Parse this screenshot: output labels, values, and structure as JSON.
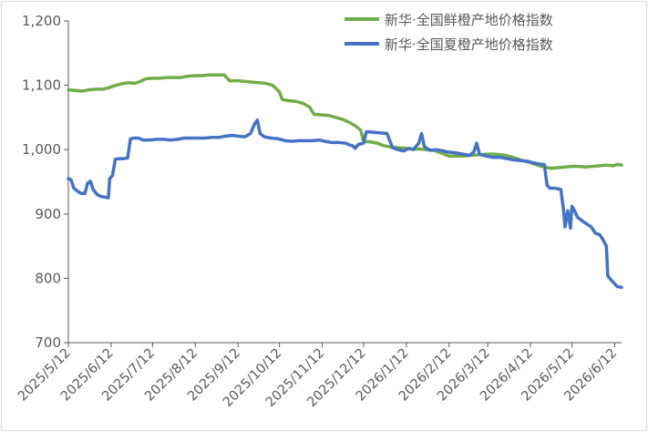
{
  "chart_data": {
    "type": "line",
    "title": "",
    "xlabel": "",
    "ylabel": "",
    "ylim": [
      700,
      1200
    ],
    "yticks": [
      700,
      800,
      900,
      1000,
      1100,
      1200
    ],
    "ytick_labels": [
      "700",
      "800",
      "900",
      "1,000",
      "1,100",
      "1,200"
    ],
    "xlim": [
      "2025-05-12",
      "2026-06-17"
    ],
    "xticks": [
      "2025-05-12",
      "2025-06-12",
      "2025-07-12",
      "2025-08-12",
      "2025-09-12",
      "2025-10-12",
      "2025-11-12",
      "2025-12-12",
      "2026-01-12",
      "2026-02-12",
      "2026-03-12",
      "2026-04-12",
      "2026-05-12",
      "2026-06-12"
    ],
    "xtick_labels": [
      "2025/5/12",
      "2025/6/12",
      "2025/7/12",
      "2025/8/12",
      "2025/9/12",
      "2025/10/12",
      "2025/11/12",
      "2025/12/12",
      "2026/1/12",
      "2026/2/12",
      "2026/3/12",
      "2026/4/12",
      "2026/5/12",
      "2026/6/12"
    ],
    "grid": false,
    "legend": "top-right",
    "series": [
      {
        "name": "新华·全国鲜橙产地价格指数",
        "color": "#70AD47",
        "points": [
          [
            "2025-05-12",
            1093
          ],
          [
            "2025-05-17",
            1092
          ],
          [
            "2025-05-22",
            1091
          ],
          [
            "2025-05-27",
            1093
          ],
          [
            "2025-06-01",
            1094
          ],
          [
            "2025-06-06",
            1094
          ],
          [
            "2025-06-10",
            1096
          ],
          [
            "2025-06-14",
            1099
          ],
          [
            "2025-06-19",
            1102
          ],
          [
            "2025-06-24",
            1104
          ],
          [
            "2025-06-29",
            1103
          ],
          [
            "2025-07-02",
            1105
          ],
          [
            "2025-07-07",
            1110
          ],
          [
            "2025-07-12",
            1111
          ],
          [
            "2025-07-17",
            1111
          ],
          [
            "2025-07-22",
            1112
          ],
          [
            "2025-07-27",
            1112
          ],
          [
            "2025-08-01",
            1112
          ],
          [
            "2025-08-06",
            1114
          ],
          [
            "2025-08-12",
            1115
          ],
          [
            "2025-08-17",
            1115
          ],
          [
            "2025-08-22",
            1116
          ],
          [
            "2025-08-27",
            1116
          ],
          [
            "2025-09-02",
            1116
          ],
          [
            "2025-09-06",
            1107
          ],
          [
            "2025-09-12",
            1107
          ],
          [
            "2025-09-17",
            1106
          ],
          [
            "2025-09-22",
            1105
          ],
          [
            "2025-09-27",
            1104
          ],
          [
            "2025-10-02",
            1103
          ],
          [
            "2025-10-07",
            1100
          ],
          [
            "2025-10-12",
            1090
          ],
          [
            "2025-10-14",
            1078
          ],
          [
            "2025-10-19",
            1076
          ],
          [
            "2025-10-24",
            1075
          ],
          [
            "2025-10-29",
            1072
          ],
          [
            "2025-11-03",
            1066
          ],
          [
            "2025-11-06",
            1055
          ],
          [
            "2025-11-12",
            1054
          ],
          [
            "2025-11-17",
            1053
          ],
          [
            "2025-11-22",
            1050
          ],
          [
            "2025-11-27",
            1047
          ],
          [
            "2025-12-02",
            1042
          ],
          [
            "2025-12-06",
            1037
          ],
          [
            "2025-12-10",
            1030
          ],
          [
            "2025-12-12",
            1013
          ],
          [
            "2025-12-17",
            1012
          ],
          [
            "2025-12-22",
            1010
          ],
          [
            "2025-12-27",
            1006
          ],
          [
            "2026-01-01",
            1004
          ],
          [
            "2026-01-06",
            1003
          ],
          [
            "2026-01-12",
            1002
          ],
          [
            "2026-01-17",
            1001
          ],
          [
            "2026-01-22",
            1001
          ],
          [
            "2026-01-27",
            1000
          ],
          [
            "2026-02-01",
            999
          ],
          [
            "2026-02-06",
            995
          ],
          [
            "2026-02-12",
            990
          ],
          [
            "2026-02-17",
            990
          ],
          [
            "2026-02-22",
            990
          ],
          [
            "2026-02-27",
            991
          ],
          [
            "2026-03-04",
            992
          ],
          [
            "2026-03-12",
            993
          ],
          [
            "2026-03-17",
            993
          ],
          [
            "2026-03-22",
            992
          ],
          [
            "2026-03-27",
            990
          ],
          [
            "2026-04-01",
            987
          ],
          [
            "2026-04-06",
            983
          ],
          [
            "2026-04-12",
            980
          ],
          [
            "2026-04-17",
            976
          ],
          [
            "2026-04-22",
            973
          ],
          [
            "2026-04-27",
            971
          ],
          [
            "2026-05-02",
            972
          ],
          [
            "2026-05-07",
            973
          ],
          [
            "2026-05-12",
            974
          ],
          [
            "2026-05-17",
            974
          ],
          [
            "2026-05-22",
            973
          ],
          [
            "2026-05-27",
            974
          ],
          [
            "2026-06-01",
            975
          ],
          [
            "2026-06-06",
            976
          ],
          [
            "2026-06-11",
            975
          ],
          [
            "2026-06-14",
            977
          ],
          [
            "2026-06-17",
            976
          ]
        ]
      },
      {
        "name": "新华·全国夏橙产地价格指数",
        "color": "#4472C4",
        "points": [
          [
            "2025-05-12",
            955
          ],
          [
            "2025-05-14",
            953
          ],
          [
            "2025-05-16",
            940
          ],
          [
            "2025-05-19",
            935
          ],
          [
            "2025-05-21",
            932
          ],
          [
            "2025-05-24",
            932
          ],
          [
            "2025-05-26",
            948
          ],
          [
            "2025-05-28",
            951
          ],
          [
            "2025-05-30",
            938
          ],
          [
            "2025-06-02",
            930
          ],
          [
            "2025-06-05",
            927
          ],
          [
            "2025-06-08",
            926
          ],
          [
            "2025-06-10",
            925
          ],
          [
            "2025-06-11",
            955
          ],
          [
            "2025-06-13",
            960
          ],
          [
            "2025-06-15",
            985
          ],
          [
            "2025-06-18",
            986
          ],
          [
            "2025-06-21",
            986
          ],
          [
            "2025-06-24",
            987
          ],
          [
            "2025-06-26",
            1017
          ],
          [
            "2025-06-29",
            1018
          ],
          [
            "2025-07-02",
            1018
          ],
          [
            "2025-07-05",
            1015
          ],
          [
            "2025-07-10",
            1015
          ],
          [
            "2025-07-15",
            1016
          ],
          [
            "2025-07-20",
            1016
          ],
          [
            "2025-07-25",
            1015
          ],
          [
            "2025-07-30",
            1016
          ],
          [
            "2025-08-04",
            1018
          ],
          [
            "2025-08-09",
            1018
          ],
          [
            "2025-08-14",
            1018
          ],
          [
            "2025-08-19",
            1018
          ],
          [
            "2025-08-24",
            1019
          ],
          [
            "2025-08-29",
            1019
          ],
          [
            "2025-09-03",
            1021
          ],
          [
            "2025-09-08",
            1022
          ],
          [
            "2025-09-12",
            1021
          ],
          [
            "2025-09-17",
            1020
          ],
          [
            "2025-09-21",
            1025
          ],
          [
            "2025-09-24",
            1040
          ],
          [
            "2025-09-26",
            1046
          ],
          [
            "2025-09-28",
            1025
          ],
          [
            "2025-10-01",
            1020
          ],
          [
            "2025-10-06",
            1018
          ],
          [
            "2025-10-11",
            1017
          ],
          [
            "2025-10-16",
            1014
          ],
          [
            "2025-10-21",
            1013
          ],
          [
            "2025-10-26",
            1014
          ],
          [
            "2025-10-31",
            1014
          ],
          [
            "2025-11-05",
            1014
          ],
          [
            "2025-11-10",
            1015
          ],
          [
            "2025-11-14",
            1013
          ],
          [
            "2025-11-19",
            1011
          ],
          [
            "2025-11-24",
            1011
          ],
          [
            "2025-11-29",
            1010
          ],
          [
            "2025-12-01",
            1008
          ],
          [
            "2025-12-04",
            1006
          ],
          [
            "2025-12-06",
            1002
          ],
          [
            "2025-12-08",
            1008
          ],
          [
            "2025-12-12",
            1010
          ],
          [
            "2025-12-14",
            1028
          ],
          [
            "2025-12-19",
            1027
          ],
          [
            "2025-12-24",
            1026
          ],
          [
            "2025-12-29",
            1025
          ],
          [
            "2026-01-02",
            1003
          ],
          [
            "2026-01-06",
            1000
          ],
          [
            "2026-01-10",
            998
          ],
          [
            "2026-01-14",
            1002
          ],
          [
            "2026-01-17",
            1000
          ],
          [
            "2026-01-21",
            1010
          ],
          [
            "2026-01-23",
            1025
          ],
          [
            "2026-01-25",
            1005
          ],
          [
            "2026-01-29",
            999
          ],
          [
            "2026-02-03",
            1000
          ],
          [
            "2026-02-08",
            998
          ],
          [
            "2026-02-12",
            996
          ],
          [
            "2026-02-17",
            995
          ],
          [
            "2026-02-22",
            993
          ],
          [
            "2026-02-27",
            991
          ],
          [
            "2026-03-02",
            997
          ],
          [
            "2026-03-04",
            1010
          ],
          [
            "2026-03-06",
            993
          ],
          [
            "2026-03-11",
            990
          ],
          [
            "2026-03-16",
            988
          ],
          [
            "2026-03-21",
            988
          ],
          [
            "2026-03-26",
            986
          ],
          [
            "2026-03-31",
            984
          ],
          [
            "2026-04-05",
            983
          ],
          [
            "2026-04-10",
            982
          ],
          [
            "2026-04-13",
            980
          ],
          [
            "2026-04-17",
            978
          ],
          [
            "2026-04-22",
            977
          ],
          [
            "2026-04-24",
            945
          ],
          [
            "2026-04-26",
            940
          ],
          [
            "2026-04-30",
            940
          ],
          [
            "2026-05-04",
            938
          ],
          [
            "2026-05-06",
            905
          ],
          [
            "2026-05-07",
            880
          ],
          [
            "2026-05-09",
            905
          ],
          [
            "2026-05-11",
            878
          ],
          [
            "2026-05-12",
            912
          ],
          [
            "2026-05-14",
            905
          ],
          [
            "2026-05-16",
            895
          ],
          [
            "2026-05-21",
            887
          ],
          [
            "2026-05-26",
            880
          ],
          [
            "2026-05-29",
            870
          ],
          [
            "2026-06-01",
            868
          ],
          [
            "2026-06-03",
            862
          ],
          [
            "2026-06-06",
            850
          ],
          [
            "2026-06-07",
            804
          ],
          [
            "2026-06-10",
            796
          ],
          [
            "2026-06-14",
            787
          ],
          [
            "2026-06-17",
            786
          ]
        ]
      }
    ]
  }
}
